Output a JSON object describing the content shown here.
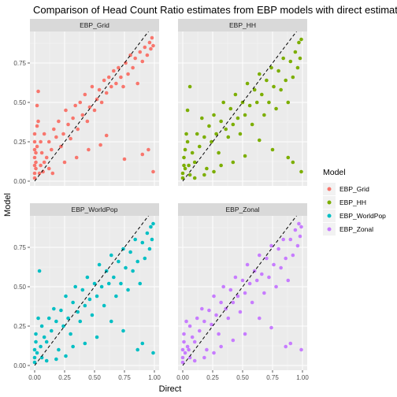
{
  "chart_data": {
    "type": "scatter",
    "title": "Comparison of Head Count Ratio estimates from EBP models with direct estimates",
    "xlabel": "Direct",
    "ylabel": "Model",
    "xlim": [
      0,
      1
    ],
    "ylim": [
      0,
      0.92
    ],
    "x_ticks": [
      "0.00",
      "0.25",
      "0.50",
      "0.75",
      "1.00"
    ],
    "y_ticks": [
      "0.00",
      "0.25",
      "0.50",
      "0.75"
    ],
    "reference_line": "y = x (dashed)",
    "grid": true,
    "legend": {
      "title": "Model",
      "position": "right",
      "entries": [
        {
          "name": "EBP_Grid",
          "color": "#F8766D"
        },
        {
          "name": "EBP_HH",
          "color": "#7CAE00"
        },
        {
          "name": "EBP_WorldPop",
          "color": "#00BFC4"
        },
        {
          "name": "EBP_Zonal",
          "color": "#C77CFF"
        }
      ]
    },
    "series": [
      {
        "name": "EBP_Grid",
        "facet": "EBP_Grid",
        "color": "#F8766D",
        "points": [
          [
            0,
            0.02
          ],
          [
            0,
            0.05
          ],
          [
            0,
            0.1
          ],
          [
            0,
            0.15
          ],
          [
            0,
            0.2
          ],
          [
            0,
            0.25
          ],
          [
            0,
            0.3
          ],
          [
            0.01,
            0.08
          ],
          [
            0.01,
            0.12
          ],
          [
            0.01,
            0.18
          ],
          [
            0.02,
            0.22
          ],
          [
            0.02,
            0.35
          ],
          [
            0.02,
            0.48
          ],
          [
            0.03,
            0.57
          ],
          [
            0.03,
            0.38
          ],
          [
            0.05,
            0.1
          ],
          [
            0.06,
            0.18
          ],
          [
            0.08,
            0.3
          ],
          [
            0.1,
            0.15
          ],
          [
            0.12,
            0.25
          ],
          [
            0.14,
            0.2
          ],
          [
            0.16,
            0.33
          ],
          [
            0.18,
            0.28
          ],
          [
            0.2,
            0.38
          ],
          [
            0.22,
            0.22
          ],
          [
            0.24,
            0.3
          ],
          [
            0.26,
            0.45
          ],
          [
            0.28,
            0.36
          ],
          [
            0.3,
            0.27
          ],
          [
            0.32,
            0.4
          ],
          [
            0.34,
            0.48
          ],
          [
            0.36,
            0.33
          ],
          [
            0.38,
            0.5
          ],
          [
            0.4,
            0.42
          ],
          [
            0.42,
            0.55
          ],
          [
            0.44,
            0.38
          ],
          [
            0.46,
            0.47
          ],
          [
            0.48,
            0.6
          ],
          [
            0.5,
            0.45
          ],
          [
            0.52,
            0.52
          ],
          [
            0.54,
            0.58
          ],
          [
            0.56,
            0.5
          ],
          [
            0.58,
            0.64
          ],
          [
            0.6,
            0.56
          ],
          [
            0.62,
            0.66
          ],
          [
            0.64,
            0.6
          ],
          [
            0.66,
            0.7
          ],
          [
            0.68,
            0.62
          ],
          [
            0.7,
            0.72
          ],
          [
            0.72,
            0.66
          ],
          [
            0.74,
            0.6
          ],
          [
            0.76,
            0.75
          ],
          [
            0.78,
            0.68
          ],
          [
            0.8,
            0.8
          ],
          [
            0.82,
            0.72
          ],
          [
            0.84,
            0.78
          ],
          [
            0.86,
            0.62
          ],
          [
            0.88,
            0.82
          ],
          [
            0.9,
            0.76
          ],
          [
            0.92,
            0.85
          ],
          [
            0.94,
            0.8
          ],
          [
            0.96,
            0.88
          ],
          [
            0.97,
            0.84
          ],
          [
            0.98,
            0.91
          ],
          [
            0.99,
            0.86
          ],
          [
            0.99,
            0.06
          ],
          [
            0.95,
            0.2
          ],
          [
            0.9,
            0.17
          ],
          [
            0.75,
            0.14
          ],
          [
            0.55,
            0.23
          ],
          [
            0.6,
            0.29
          ],
          [
            0.45,
            0.2
          ],
          [
            0.35,
            0.15
          ],
          [
            0.25,
            0.12
          ],
          [
            0.15,
            0.05
          ],
          [
            0.12,
            0.08
          ],
          [
            0.08,
            0.12
          ],
          [
            0.05,
            0.25
          ],
          [
            0.04,
            0.05
          ],
          [
            0.07,
            0.06
          ]
        ]
      },
      {
        "name": "EBP_HH",
        "facet": "EBP_HH",
        "color": "#7CAE00",
        "points": [
          [
            0,
            0.02
          ],
          [
            0,
            0.05
          ],
          [
            0.01,
            0.1
          ],
          [
            0.01,
            0.15
          ],
          [
            0.02,
            0.2
          ],
          [
            0.02,
            0.08
          ],
          [
            0.03,
            0.3
          ],
          [
            0.04,
            0.45
          ],
          [
            0.05,
            0.1
          ],
          [
            0.06,
            0.6
          ],
          [
            0.08,
            0.18
          ],
          [
            0.1,
            0.12
          ],
          [
            0.12,
            0.3
          ],
          [
            0.14,
            0.22
          ],
          [
            0.16,
            0.4
          ],
          [
            0.18,
            0.28
          ],
          [
            0.2,
            0.08
          ],
          [
            0.22,
            0.35
          ],
          [
            0.24,
            0.25
          ],
          [
            0.26,
            0.42
          ],
          [
            0.28,
            0.3
          ],
          [
            0.3,
            0.18
          ],
          [
            0.32,
            0.38
          ],
          [
            0.34,
            0.5
          ],
          [
            0.36,
            0.33
          ],
          [
            0.38,
            0.28
          ],
          [
            0.4,
            0.46
          ],
          [
            0.42,
            0.36
          ],
          [
            0.44,
            0.55
          ],
          [
            0.46,
            0.4
          ],
          [
            0.48,
            0.3
          ],
          [
            0.5,
            0.5
          ],
          [
            0.52,
            0.42
          ],
          [
            0.54,
            0.62
          ],
          [
            0.56,
            0.48
          ],
          [
            0.58,
            0.36
          ],
          [
            0.6,
            0.58
          ],
          [
            0.62,
            0.5
          ],
          [
            0.64,
            0.68
          ],
          [
            0.66,
            0.55
          ],
          [
            0.68,
            0.42
          ],
          [
            0.7,
            0.64
          ],
          [
            0.72,
            0.5
          ],
          [
            0.74,
            0.72
          ],
          [
            0.76,
            0.6
          ],
          [
            0.78,
            0.46
          ],
          [
            0.8,
            0.7
          ],
          [
            0.82,
            0.58
          ],
          [
            0.84,
            0.78
          ],
          [
            0.86,
            0.64
          ],
          [
            0.88,
            0.5
          ],
          [
            0.9,
            0.76
          ],
          [
            0.92,
            0.66
          ],
          [
            0.94,
            0.82
          ],
          [
            0.96,
            0.72
          ],
          [
            0.97,
            0.88
          ],
          [
            0.98,
            0.78
          ],
          [
            0.99,
            0.9
          ],
          [
            0.99,
            0.06
          ],
          [
            0.92,
            0.12
          ],
          [
            0.88,
            0.15
          ],
          [
            0.75,
            0.2
          ],
          [
            0.64,
            0.26
          ],
          [
            0.52,
            0.16
          ],
          [
            0.42,
            0.12
          ],
          [
            0.32,
            0.1
          ],
          [
            0.26,
            0.06
          ],
          [
            0.18,
            0.04
          ],
          [
            0.1,
            0.02
          ],
          [
            0.06,
            0.04
          ],
          [
            0.04,
            0.25
          ]
        ]
      },
      {
        "name": "EBP_WorldPop",
        "facet": "EBP_WorldPop",
        "color": "#00BFC4",
        "points": [
          [
            0,
            0.02
          ],
          [
            0,
            0.05
          ],
          [
            0,
            0.1
          ],
          [
            0.01,
            0.15
          ],
          [
            0.01,
            0.2
          ],
          [
            0.02,
            0.08
          ],
          [
            0.03,
            0.3
          ],
          [
            0.04,
            0.6
          ],
          [
            0.05,
            0.12
          ],
          [
            0.06,
            0.25
          ],
          [
            0.08,
            0.18
          ],
          [
            0.1,
            0.15
          ],
          [
            0.12,
            0.3
          ],
          [
            0.14,
            0.22
          ],
          [
            0.16,
            0.36
          ],
          [
            0.18,
            0.28
          ],
          [
            0.2,
            0.1
          ],
          [
            0.22,
            0.35
          ],
          [
            0.24,
            0.25
          ],
          [
            0.26,
            0.44
          ],
          [
            0.28,
            0.3
          ],
          [
            0.3,
            0.2
          ],
          [
            0.32,
            0.4
          ],
          [
            0.34,
            0.5
          ],
          [
            0.36,
            0.34
          ],
          [
            0.38,
            0.28
          ],
          [
            0.4,
            0.48
          ],
          [
            0.42,
            0.38
          ],
          [
            0.44,
            0.56
          ],
          [
            0.46,
            0.42
          ],
          [
            0.48,
            0.32
          ],
          [
            0.5,
            0.52
          ],
          [
            0.52,
            0.44
          ],
          [
            0.54,
            0.64
          ],
          [
            0.56,
            0.5
          ],
          [
            0.58,
            0.38
          ],
          [
            0.6,
            0.6
          ],
          [
            0.62,
            0.52
          ],
          [
            0.64,
            0.7
          ],
          [
            0.66,
            0.56
          ],
          [
            0.68,
            0.44
          ],
          [
            0.7,
            0.66
          ],
          [
            0.72,
            0.52
          ],
          [
            0.74,
            0.74
          ],
          [
            0.76,
            0.62
          ],
          [
            0.78,
            0.48
          ],
          [
            0.8,
            0.72
          ],
          [
            0.82,
            0.6
          ],
          [
            0.84,
            0.8
          ],
          [
            0.86,
            0.66
          ],
          [
            0.88,
            0.52
          ],
          [
            0.9,
            0.78
          ],
          [
            0.92,
            0.68
          ],
          [
            0.94,
            0.84
          ],
          [
            0.96,
            0.74
          ],
          [
            0.97,
            0.88
          ],
          [
            0.98,
            0.8
          ],
          [
            0.99,
            0.9
          ],
          [
            0.99,
            0.08
          ],
          [
            0.9,
            0.14
          ],
          [
            0.86,
            0.1
          ],
          [
            0.74,
            0.22
          ],
          [
            0.64,
            0.28
          ],
          [
            0.52,
            0.18
          ],
          [
            0.42,
            0.14
          ],
          [
            0.32,
            0.12
          ],
          [
            0.26,
            0.06
          ],
          [
            0.18,
            0.04
          ],
          [
            0.1,
            0.03
          ],
          [
            0.06,
            0.05
          ]
        ]
      },
      {
        "name": "EBP_Zonal",
        "facet": "EBP_Zonal",
        "color": "#C77CFF",
        "points": [
          [
            0,
            0.02
          ],
          [
            0,
            0.05
          ],
          [
            0,
            0.1
          ],
          [
            0.01,
            0.15
          ],
          [
            0.01,
            0.2
          ],
          [
            0.02,
            0.08
          ],
          [
            0.03,
            0.28
          ],
          [
            0.04,
            0.12
          ],
          [
            0.05,
            0.1
          ],
          [
            0.06,
            0.25
          ],
          [
            0.08,
            0.18
          ],
          [
            0.1,
            0.15
          ],
          [
            0.12,
            0.3
          ],
          [
            0.14,
            0.22
          ],
          [
            0.16,
            0.36
          ],
          [
            0.18,
            0.28
          ],
          [
            0.2,
            0.1
          ],
          [
            0.22,
            0.35
          ],
          [
            0.24,
            0.26
          ],
          [
            0.26,
            0.44
          ],
          [
            0.28,
            0.32
          ],
          [
            0.3,
            0.2
          ],
          [
            0.32,
            0.4
          ],
          [
            0.34,
            0.5
          ],
          [
            0.36,
            0.36
          ],
          [
            0.38,
            0.3
          ],
          [
            0.4,
            0.48
          ],
          [
            0.42,
            0.4
          ],
          [
            0.44,
            0.56
          ],
          [
            0.46,
            0.44
          ],
          [
            0.48,
            0.34
          ],
          [
            0.5,
            0.54
          ],
          [
            0.52,
            0.46
          ],
          [
            0.54,
            0.64
          ],
          [
            0.56,
            0.52
          ],
          [
            0.58,
            0.4
          ],
          [
            0.6,
            0.6
          ],
          [
            0.62,
            0.54
          ],
          [
            0.64,
            0.7
          ],
          [
            0.66,
            0.58
          ],
          [
            0.68,
            0.46
          ],
          [
            0.7,
            0.68
          ],
          [
            0.72,
            0.56
          ],
          [
            0.74,
            0.76
          ],
          [
            0.76,
            0.64
          ],
          [
            0.78,
            0.5
          ],
          [
            0.8,
            0.74
          ],
          [
            0.82,
            0.62
          ],
          [
            0.84,
            0.8
          ],
          [
            0.86,
            0.68
          ],
          [
            0.88,
            0.54
          ],
          [
            0.9,
            0.8
          ],
          [
            0.92,
            0.7
          ],
          [
            0.94,
            0.86
          ],
          [
            0.96,
            0.76
          ],
          [
            0.97,
            0.9
          ],
          [
            0.98,
            0.82
          ],
          [
            0.99,
            0.88
          ],
          [
            0.99,
            0.1
          ],
          [
            0.9,
            0.14
          ],
          [
            0.86,
            0.12
          ],
          [
            0.74,
            0.24
          ],
          [
            0.64,
            0.3
          ],
          [
            0.52,
            0.2
          ],
          [
            0.42,
            0.16
          ],
          [
            0.32,
            0.12
          ],
          [
            0.26,
            0.08
          ],
          [
            0.18,
            0.05
          ],
          [
            0.1,
            0.03
          ],
          [
            0.06,
            0.05
          ]
        ]
      }
    ]
  }
}
